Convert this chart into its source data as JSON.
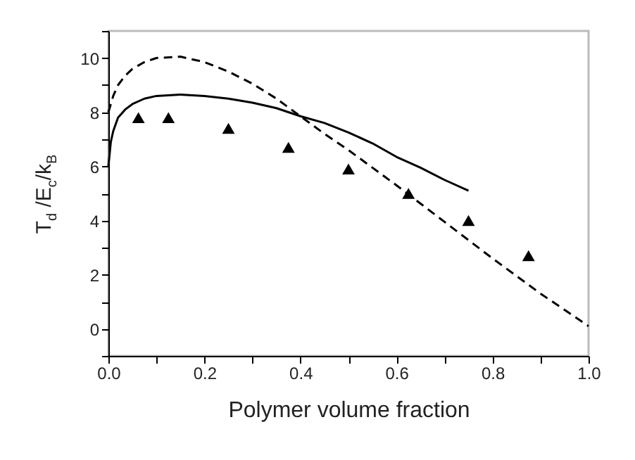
{
  "chart_data": {
    "type": "line",
    "xlabel": "Polymer volume fraction",
    "ylabel": "T$_{d}$ /E$_{c}$/k$_{B}$",
    "xlim": [
      0,
      1.0
    ],
    "ylim": [
      -1,
      11
    ],
    "xticks": [
      {
        "value": 0,
        "label": "0.0"
      },
      {
        "value": 0.1,
        "label": null
      },
      {
        "value": 0.2,
        "label": "0.2"
      },
      {
        "value": 0.3,
        "label": null
      },
      {
        "value": 0.4,
        "label": "0.4"
      },
      {
        "value": 0.5,
        "label": null
      },
      {
        "value": 0.6,
        "label": "0.6"
      },
      {
        "value": 0.7,
        "label": null
      },
      {
        "value": 0.8,
        "label": "0.8"
      },
      {
        "value": 0.9,
        "label": null
      },
      {
        "value": 1.0,
        "label": "1.0"
      }
    ],
    "yticks": [
      {
        "value": -1,
        "label": null
      },
      0,
      {
        "value": 1,
        "label": null
      },
      2,
      {
        "value": 3,
        "label": null
      },
      4,
      {
        "value": 5,
        "label": null
      },
      6,
      {
        "value": 7,
        "label": null
      },
      8,
      {
        "value": 9,
        "label": null
      },
      10,
      {
        "value": 11,
        "label": null
      }
    ],
    "grid": false,
    "series": [
      {
        "line_style": "solid",
        "color": "#000000",
        "x": [
          0,
          0.005,
          0.01,
          0.02,
          0.035,
          0.05,
          0.075,
          0.1,
          0.15,
          0.2,
          0.25,
          0.3,
          0.35,
          0.4,
          0.45,
          0.5,
          0.55,
          0.6,
          0.65,
          0.7,
          0.75
        ],
        "values": [
          6.0,
          6.9,
          7.3,
          7.8,
          8.1,
          8.3,
          8.5,
          8.6,
          8.65,
          8.6,
          8.5,
          8.35,
          8.15,
          7.85,
          7.6,
          7.25,
          6.85,
          6.35,
          5.95,
          5.5,
          5.1
        ]
      },
      {
        "line_style": "dashed",
        "color": "#000000",
        "x": [
          0,
          0.01,
          0.02,
          0.035,
          0.05,
          0.075,
          0.1,
          0.15,
          0.2,
          0.25,
          0.3,
          0.35,
          0.4,
          0.45,
          0.5,
          0.6,
          0.7,
          0.8,
          0.9,
          1.0
        ],
        "values": [
          8.0,
          8.6,
          9.0,
          9.35,
          9.6,
          9.85,
          10.0,
          10.05,
          9.85,
          9.5,
          9.05,
          8.5,
          7.85,
          7.2,
          6.6,
          5.3,
          3.95,
          2.6,
          1.3,
          0.1
        ]
      },
      {
        "type": "scatter",
        "marker": "triangle",
        "color": "#000000",
        "x": [
          0.0625,
          0.125,
          0.25,
          0.375,
          0.5,
          0.625,
          0.75,
          0.875
        ],
        "values": [
          7.8,
          7.8,
          7.4,
          6.7,
          5.9,
          5.0,
          4.0,
          2.7
        ]
      }
    ]
  }
}
